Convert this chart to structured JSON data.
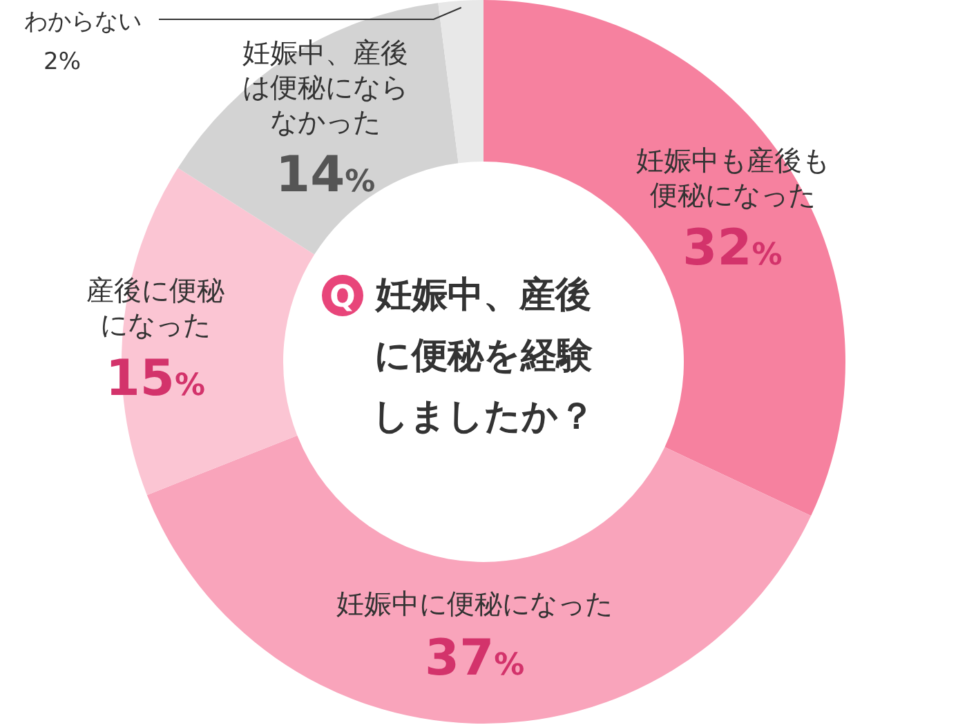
{
  "chart_data": {
    "type": "donut",
    "title": "妊娠中、産後に便秘を経験しましたか？",
    "annotations": [
      "Q"
    ],
    "categories": [
      "妊娠中も産後も便秘になった",
      "妊娠中に便秘になった",
      "産後に便秘になった",
      "妊娠中、産後は便秘にならなかった",
      "わからない"
    ],
    "values": [
      32,
      37,
      15,
      14,
      2
    ],
    "value_labels": [
      "32%",
      "37%",
      "15%",
      "14%",
      "2%"
    ],
    "colors": [
      "#f6819f",
      "#f9a4bb",
      "#fbc5d3",
      "#d3d3d3",
      "#e8e8e8"
    ],
    "legend": false
  }
}
